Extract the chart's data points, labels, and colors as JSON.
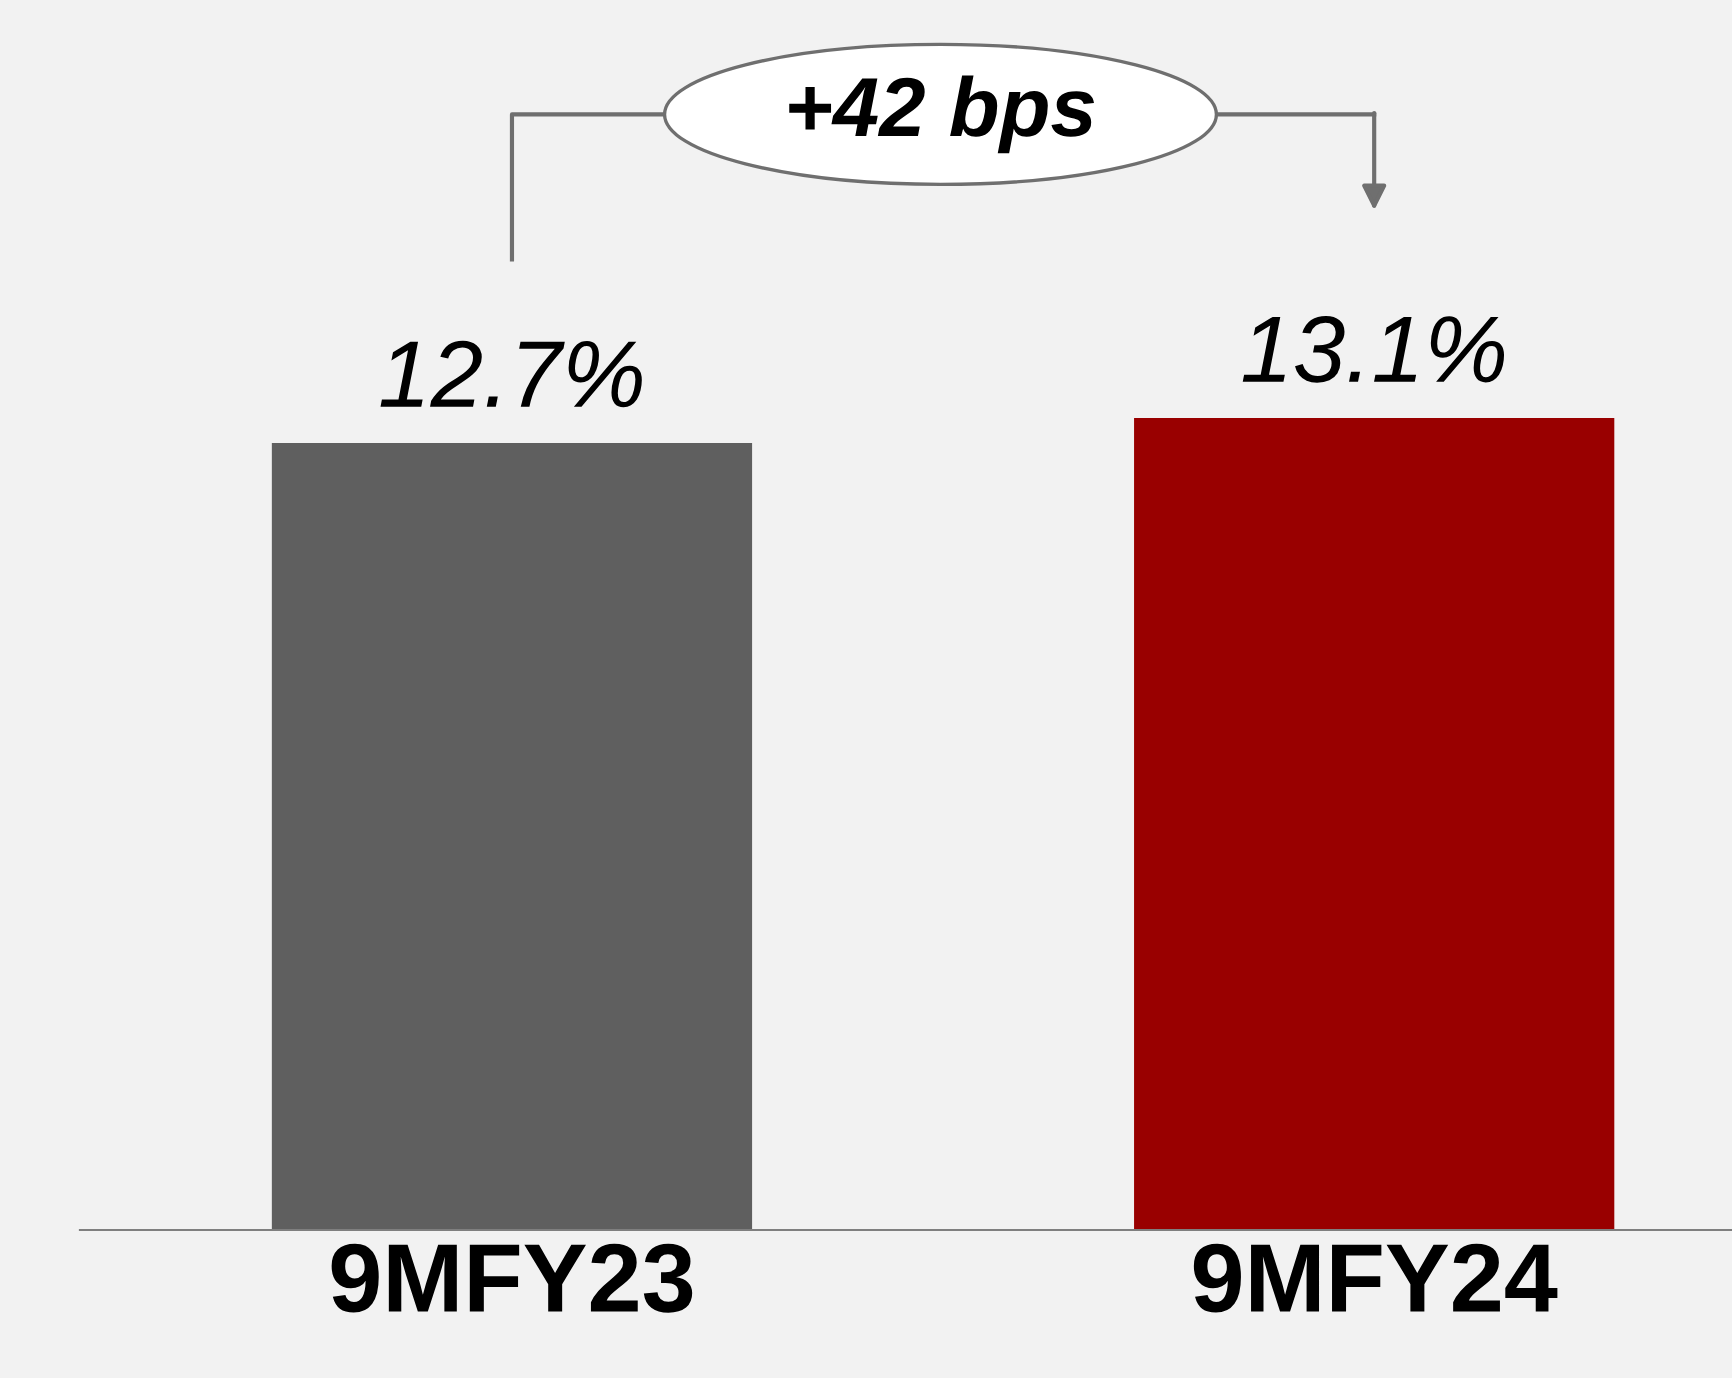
{
  "chart_data": {
    "type": "bar",
    "categories": [
      "9MFY23",
      "9MFY24"
    ],
    "values": [
      12.7,
      13.1
    ],
    "colors": [
      "#5f5f5f",
      "#990000"
    ],
    "value_labels": [
      "12.7%",
      "13.1%"
    ],
    "annotations": [
      "+42 bps"
    ],
    "grid": false,
    "legend": false
  }
}
